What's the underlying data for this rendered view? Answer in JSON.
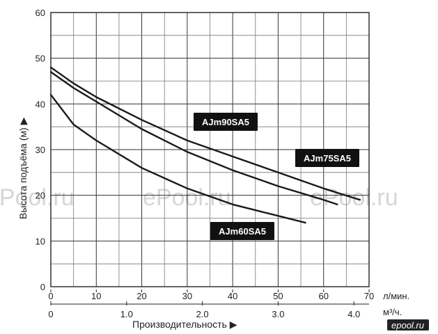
{
  "chart_data": {
    "type": "line",
    "ylabel": "Высота подъёма (м) ▶",
    "xlabel": "Производительность ▶",
    "x_unit": "л/мин.",
    "x2_unit": "м³/ч.",
    "xlim": [
      0,
      70
    ],
    "ylim": [
      0,
      60
    ],
    "x_ticks": [
      "0",
      "10",
      "20",
      "30",
      "40",
      "50",
      "60",
      "70"
    ],
    "y_ticks": [
      "0",
      "10",
      "20",
      "30",
      "40",
      "50",
      "60"
    ],
    "x2_ticks": [
      "0",
      "1.0",
      "2.0",
      "3.0",
      "4.0"
    ],
    "x2_tick_values": [
      0,
      1.0,
      2.0,
      3.0,
      4.0
    ],
    "grid": true,
    "series": [
      {
        "name": "AJm90SA5",
        "x": [
          0,
          5,
          10,
          20,
          30,
          40,
          50,
          60,
          68
        ],
        "y": [
          48,
          44.5,
          41.5,
          36.5,
          32,
          28.5,
          25,
          21.5,
          19
        ]
      },
      {
        "name": "AJm75SA5",
        "x": [
          0,
          5,
          10,
          20,
          30,
          40,
          50,
          60,
          63
        ],
        "y": [
          47,
          43.5,
          40.5,
          34.5,
          29.5,
          25.5,
          22,
          19,
          18
        ]
      },
      {
        "name": "AJm60SA5",
        "x": [
          0,
          5,
          10,
          20,
          30,
          40,
          50,
          56
        ],
        "y": [
          42,
          35.5,
          32,
          26,
          21.5,
          18,
          15.5,
          14
        ]
      }
    ]
  },
  "watermarks": [
    "ePool.ru",
    "ePool.ru",
    "ePool.ru"
  ],
  "logo_text": "epool.ru"
}
